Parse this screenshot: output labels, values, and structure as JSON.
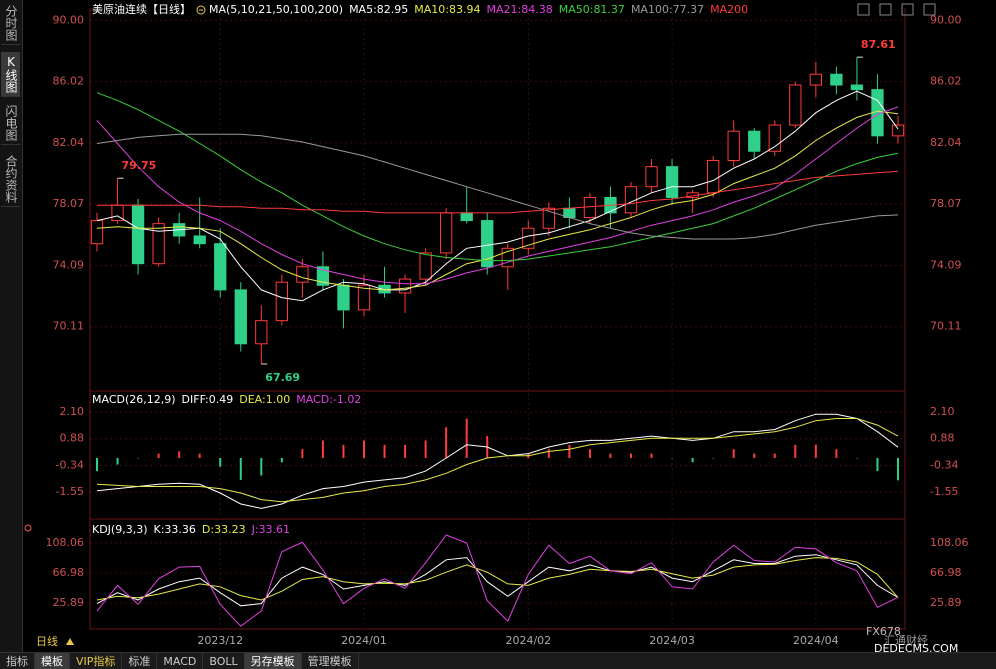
{
  "sidebar": {
    "tabs": [
      "分时图",
      "K线图",
      "闪电图",
      "合约资料"
    ]
  },
  "toolbar": [
    "指标",
    "模板",
    "VIP指标",
    "标准",
    "MACD",
    "BOLL",
    "另存模板",
    "管理模板"
  ],
  "period": "日线",
  "watermark": {
    "logo": "FX678",
    "cn": "汇通财经",
    "site": "DEDECMS.COM"
  },
  "chart_data": [
    {
      "type": "candlestick",
      "title": "美原油连续【日线】",
      "indicator": "MA(5,10,21,50,100,200)",
      "categories": [
        null,
        null,
        null,
        null,
        null,
        null,
        "2023/12",
        null,
        null,
        null,
        null,
        null,
        null,
        "2024/01",
        null,
        null,
        null,
        null,
        null,
        null,
        null,
        "2024/02",
        null,
        null,
        null,
        null,
        null,
        null,
        "2024/03",
        null,
        null,
        null,
        null,
        null,
        null,
        "2024/04",
        null,
        null,
        null,
        null
      ],
      "open": [
        75.5,
        77.0,
        78.0,
        74.2,
        76.8,
        76.0,
        75.5,
        72.5,
        69.0,
        70.5,
        73.0,
        74.0,
        72.8,
        71.2,
        72.8,
        72.3,
        73.2,
        74.9,
        77.5,
        77.0,
        74.0,
        75.2,
        76.5,
        77.8,
        77.2,
        78.5,
        77.5,
        79.2,
        80.5,
        78.5,
        78.8,
        80.9,
        82.8,
        81.5,
        83.2,
        85.8,
        86.5,
        85.8,
        85.5,
        82.5
      ],
      "high": [
        77.5,
        79.75,
        78.4,
        77.2,
        77.5,
        78.5,
        76.5,
        73.0,
        71.5,
        73.5,
        74.5,
        75.0,
        73.2,
        73.5,
        74.0,
        73.5,
        75.2,
        77.8,
        79.2,
        77.5,
        75.5,
        77.0,
        78.2,
        78.5,
        78.8,
        79.2,
        79.5,
        81.0,
        81.0,
        79.0,
        81.2,
        83.5,
        83.0,
        83.5,
        86.0,
        87.3,
        87.0,
        87.61,
        86.5,
        83.8
      ],
      "low": [
        75.0,
        76.8,
        73.5,
        74.0,
        75.5,
        75.2,
        72.0,
        68.5,
        67.69,
        70.2,
        72.0,
        72.5,
        70.0,
        70.8,
        72.0,
        71.0,
        72.8,
        74.5,
        76.8,
        73.5,
        72.5,
        74.8,
        76.0,
        76.5,
        76.8,
        76.5,
        77.2,
        78.8,
        78.0,
        77.5,
        78.5,
        80.5,
        81.0,
        81.2,
        83.0,
        85.0,
        85.2,
        84.8,
        82.0,
        82.0
      ],
      "close": [
        77.0,
        78.0,
        74.2,
        76.8,
        76.0,
        75.5,
        72.5,
        69.0,
        70.5,
        73.0,
        74.0,
        72.8,
        71.2,
        72.8,
        72.3,
        73.2,
        74.9,
        77.5,
        77.0,
        74.0,
        75.2,
        76.5,
        77.8,
        77.2,
        78.5,
        77.5,
        79.2,
        80.5,
        78.5,
        78.8,
        80.9,
        82.8,
        81.5,
        83.2,
        85.8,
        86.5,
        85.8,
        85.5,
        82.5,
        83.2
      ],
      "up_color": "#ff3b3b",
      "down_color": "#2fd18a",
      "series": [
        {
          "name": "MA5:82.95",
          "color": "#ffffff",
          "values": [
            77,
            77.3,
            76.5,
            76.3,
            76.4,
            76.5,
            75.8,
            74.0,
            72.5,
            72.0,
            71.8,
            72.5,
            73.0,
            72.9,
            72.5,
            72.5,
            73.0,
            74.2,
            75.2,
            75.4,
            75.6,
            76.0,
            76.2,
            76.6,
            77.0,
            77.6,
            78.2,
            78.8,
            79.2,
            79.2,
            79.6,
            80.4,
            81.0,
            81.8,
            82.8,
            84.0,
            84.8,
            85.4,
            84.8,
            82.95
          ]
        },
        {
          "name": "MA10:83.94",
          "color": "#e8e84a",
          "values": [
            76.5,
            76.6,
            76.5,
            76.5,
            76.6,
            76.5,
            76.3,
            75.5,
            74.6,
            73.8,
            73.3,
            73.0,
            72.8,
            72.6,
            72.5,
            72.6,
            72.8,
            73.5,
            74.2,
            74.5,
            75.0,
            75.4,
            75.8,
            76.1,
            76.4,
            76.8,
            77.2,
            77.7,
            78.1,
            78.3,
            78.7,
            79.4,
            79.9,
            80.4,
            81.2,
            82.2,
            83.0,
            83.7,
            84.1,
            83.94
          ]
        },
        {
          "name": "MA21:84.38",
          "color": "#e040e0",
          "values": [
            83.5,
            82.0,
            80.5,
            79.2,
            78.2,
            77.5,
            77.0,
            76.3,
            75.5,
            74.8,
            74.2,
            73.8,
            73.5,
            73.2,
            73.0,
            72.9,
            72.9,
            73.2,
            73.6,
            73.9,
            74.3,
            74.7,
            75.0,
            75.3,
            75.6,
            75.9,
            76.3,
            76.7,
            77.0,
            77.3,
            77.7,
            78.2,
            78.6,
            79.1,
            80.0,
            81.0,
            82.0,
            83.0,
            83.9,
            84.38
          ]
        },
        {
          "name": "MA50:81.37",
          "color": "#3ccf3c",
          "values": [
            85.3,
            84.8,
            84.2,
            83.5,
            82.8,
            82.0,
            81.2,
            80.3,
            79.5,
            78.8,
            78.0,
            77.3,
            76.6,
            76.0,
            75.5,
            75.1,
            74.8,
            74.6,
            74.5,
            74.4,
            74.4,
            74.5,
            74.7,
            74.9,
            75.1,
            75.3,
            75.6,
            75.9,
            76.2,
            76.5,
            76.8,
            77.3,
            77.8,
            78.4,
            79.0,
            79.6,
            80.2,
            80.7,
            81.1,
            81.37
          ]
        },
        {
          "name": "MA100:77.37",
          "color": "#9a9a9a",
          "values": [
            82.0,
            82.2,
            82.4,
            82.5,
            82.6,
            82.6,
            82.6,
            82.6,
            82.5,
            82.3,
            82.1,
            81.8,
            81.5,
            81.2,
            80.8,
            80.4,
            80.0,
            79.6,
            79.2,
            78.8,
            78.4,
            78.0,
            77.6,
            77.2,
            76.8,
            76.5,
            76.2,
            76.0,
            75.9,
            75.8,
            75.8,
            75.8,
            75.9,
            76.1,
            76.4,
            76.7,
            76.9,
            77.1,
            77.3,
            77.37
          ]
        },
        {
          "name": "MA200",
          "color": "#ff3b3b",
          "values": [
            78.0,
            78.0,
            78.0,
            78.0,
            78.0,
            78.0,
            77.9,
            77.9,
            77.8,
            77.8,
            77.7,
            77.7,
            77.6,
            77.6,
            77.5,
            77.5,
            77.5,
            77.5,
            77.5,
            77.5,
            77.5,
            77.6,
            77.7,
            77.8,
            77.9,
            78.0,
            78.1,
            78.3,
            78.4,
            78.6,
            78.8,
            79.0,
            79.2,
            79.4,
            79.6,
            79.8,
            79.9,
            80.0,
            80.1,
            80.2
          ]
        }
      ],
      "annotations": [
        {
          "text": "79.75",
          "value": 79.75,
          "color": "#ff3b3b"
        },
        {
          "text": "67.69",
          "value": 67.69,
          "color": "#2fd18a"
        },
        {
          "text": "87.61",
          "value": 87.61,
          "color": "#ff3b3b"
        }
      ],
      "ylim": [
        66,
        90.8
      ],
      "yticks": [
        {
          "value": 90,
          "label": "90.00"
        },
        86.02,
        82.04,
        78.07,
        74.09,
        70.11
      ],
      "grid": true
    },
    {
      "type": "macd",
      "title": "MACD(26,12,9)",
      "series": [
        {
          "name": "DIFF:0.49",
          "color": "#ffffff",
          "values": [
            -1.5,
            -1.4,
            -1.3,
            -1.2,
            -1.15,
            -1.2,
            -1.6,
            -2.1,
            -2.3,
            -2.1,
            -1.7,
            -1.4,
            -1.3,
            -1.1,
            -1.0,
            -0.9,
            -0.6,
            0.0,
            0.6,
            0.5,
            0.1,
            0.2,
            0.5,
            0.7,
            0.8,
            0.8,
            0.9,
            1.0,
            0.9,
            0.8,
            0.9,
            1.2,
            1.2,
            1.3,
            1.7,
            2.0,
            2.0,
            1.8,
            1.2,
            0.49
          ]
        },
        {
          "name": "DEA:1.00",
          "color": "#e8e84a",
          "values": [
            -1.2,
            -1.25,
            -1.3,
            -1.3,
            -1.3,
            -1.3,
            -1.4,
            -1.6,
            -1.9,
            -2.0,
            -1.9,
            -1.8,
            -1.6,
            -1.5,
            -1.3,
            -1.2,
            -1.0,
            -0.7,
            -0.3,
            0.0,
            0.1,
            0.1,
            0.3,
            0.4,
            0.6,
            0.7,
            0.8,
            0.9,
            0.9,
            0.9,
            0.9,
            1.0,
            1.1,
            1.2,
            1.4,
            1.7,
            1.8,
            1.8,
            1.5,
            1.0
          ]
        },
        {
          "name": "MACD:-1.02",
          "color": "#e040e0",
          "kind": "bar",
          "up_color": "#ff3b3b",
          "down_color": "#2fd18a",
          "values": [
            -0.6,
            -0.3,
            0,
            0.2,
            0.3,
            0.2,
            -0.4,
            -1.0,
            -0.8,
            -0.2,
            0.4,
            0.8,
            0.6,
            0.8,
            0.6,
            0.6,
            0.8,
            1.4,
            1.8,
            1.0,
            0,
            0.2,
            0.4,
            0.6,
            0.4,
            0.2,
            0.2,
            0.2,
            0,
            -0.2,
            0,
            0.4,
            0.2,
            0.2,
            0.6,
            0.6,
            0.4,
            0,
            -0.6,
            -1.02
          ]
        }
      ],
      "ylim": [
        -2.74,
        2.92
      ],
      "yticks": [
        {
          "value": 2.1,
          "label": "2.10"
        },
        0.88,
        -0.34,
        -1.55
      ],
      "grid": true
    },
    {
      "type": "line",
      "title": "KDJ(9,3,3)",
      "series": [
        {
          "name": "K:33.36",
          "color": "#ffffff",
          "values": [
            25,
            40,
            30,
            45,
            55,
            60,
            40,
            22,
            25,
            60,
            75,
            65,
            45,
            50,
            55,
            50,
            65,
            85,
            88,
            55,
            35,
            55,
            75,
            70,
            78,
            70,
            68,
            75,
            60,
            55,
            70,
            85,
            80,
            80,
            90,
            92,
            85,
            78,
            50,
            33.36
          ]
        },
        {
          "name": "D:33.23",
          "color": "#e8e84a",
          "values": [
            30,
            35,
            33,
            38,
            45,
            52,
            48,
            36,
            30,
            42,
            58,
            62,
            55,
            52,
            53,
            52,
            57,
            68,
            78,
            68,
            52,
            50,
            60,
            65,
            72,
            70,
            69,
            72,
            66,
            60,
            64,
            75,
            78,
            79,
            84,
            88,
            87,
            82,
            65,
            33.23
          ]
        },
        {
          "name": "J:33.61",
          "color": "#e040e0",
          "values": [
            15,
            50,
            24,
            59,
            75,
            76,
            24,
            -6,
            15,
            96,
            109,
            71,
            25,
            46,
            59,
            46,
            81,
            119,
            108,
            29,
            1,
            65,
            105,
            80,
            90,
            70,
            66,
            81,
            48,
            45,
            82,
            105,
            84,
            82,
            102,
            100,
            81,
            70,
            20,
            33.61
          ]
        }
      ],
      "ylim": [
        -8.4,
        136.8
      ],
      "yticks": [
        108.06,
        66.98,
        25.89
      ],
      "grid": true
    }
  ]
}
